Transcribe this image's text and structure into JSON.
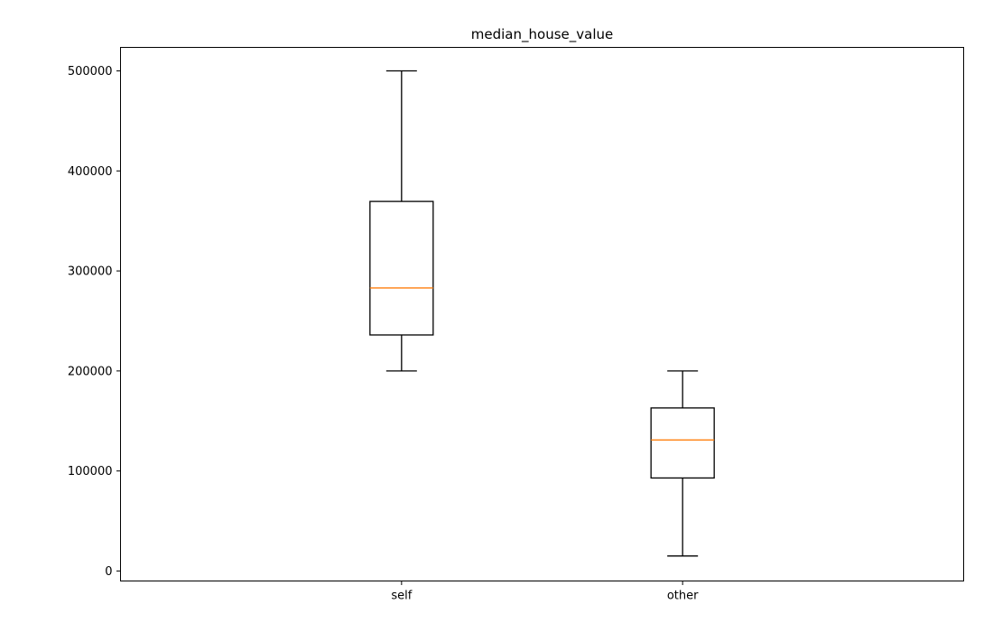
{
  "chart_data": {
    "type": "boxplot",
    "title": "median_house_value",
    "xlabel": "",
    "ylabel": "",
    "categories": [
      "self",
      "other"
    ],
    "series": [
      {
        "category": "self",
        "whisker_low": 200000,
        "q1": 236000,
        "median": 283000,
        "q3": 369500,
        "whisker_high": 500000
      },
      {
        "category": "other",
        "whisker_low": 14999,
        "q1": 93000,
        "median": 131000,
        "q3": 163000,
        "whisker_high": 200000
      }
    ],
    "y_ticks": [
      0,
      100000,
      200000,
      300000,
      400000,
      500000
    ],
    "y_tick_labels": [
      "0",
      "100000",
      "200000",
      "300000",
      "400000",
      "500000"
    ],
    "ylim": [
      -10000,
      523500
    ],
    "grid": false,
    "colors": {
      "box": "#000000",
      "median": "#ff7f0e",
      "background": "#ffffff"
    }
  }
}
